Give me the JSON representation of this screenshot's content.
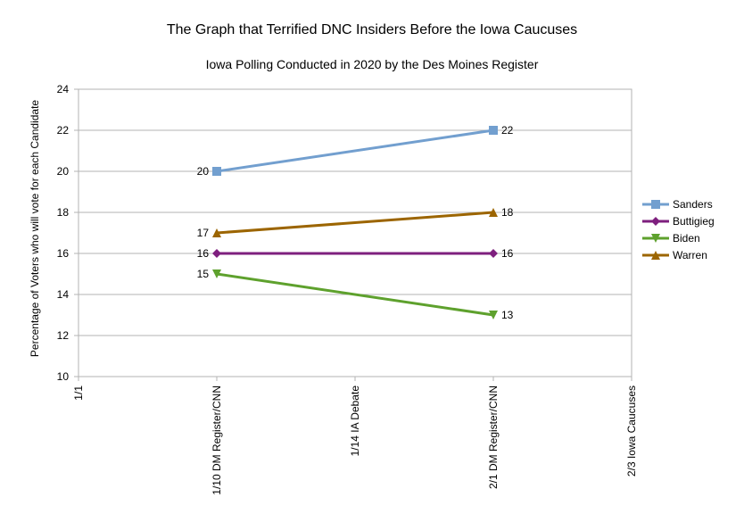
{
  "chart_data": {
    "type": "line",
    "title": "The Graph that Terrified DNC Insiders Before the Iowa Caucuses",
    "subtitle": "Iowa Polling Conducted in 2020 by the Des Moines Register",
    "xlabel": "",
    "ylabel": "Percentage of Voters who will vote for each Candidate",
    "categories": [
      "1/1",
      "1/10 DM Register/CNN",
      "1/14 IA Debate",
      "2/1 DM Register/CNN",
      "2/3 Iowa Caucuses"
    ],
    "ylim": [
      10,
      24
    ],
    "yticks": [
      10,
      12,
      14,
      16,
      18,
      20,
      22,
      24
    ],
    "grid": true,
    "legend_position": "right",
    "series": [
      {
        "name": "Sanders",
        "color": "#729fcf",
        "marker": "square",
        "points": [
          {
            "x": "1/10 DM Register/CNN",
            "y": 20
          },
          {
            "x": "2/1 DM Register/CNN",
            "y": 22
          }
        ]
      },
      {
        "name": "Buttigieg",
        "color": "#7e1f7e",
        "marker": "diamond",
        "points": [
          {
            "x": "1/10 DM Register/CNN",
            "y": 16
          },
          {
            "x": "2/1 DM Register/CNN",
            "y": 16
          }
        ]
      },
      {
        "name": "Biden",
        "color": "#5ea12d",
        "marker": "triangle-down",
        "points": [
          {
            "x": "1/10 DM Register/CNN",
            "y": 15
          },
          {
            "x": "2/1 DM Register/CNN",
            "y": 13
          }
        ]
      },
      {
        "name": "Warren",
        "color": "#9c6500",
        "marker": "triangle-up",
        "points": [
          {
            "x": "1/10 DM Register/CNN",
            "y": 17
          },
          {
            "x": "2/1 DM Register/CNN",
            "y": 18
          }
        ]
      }
    ]
  }
}
